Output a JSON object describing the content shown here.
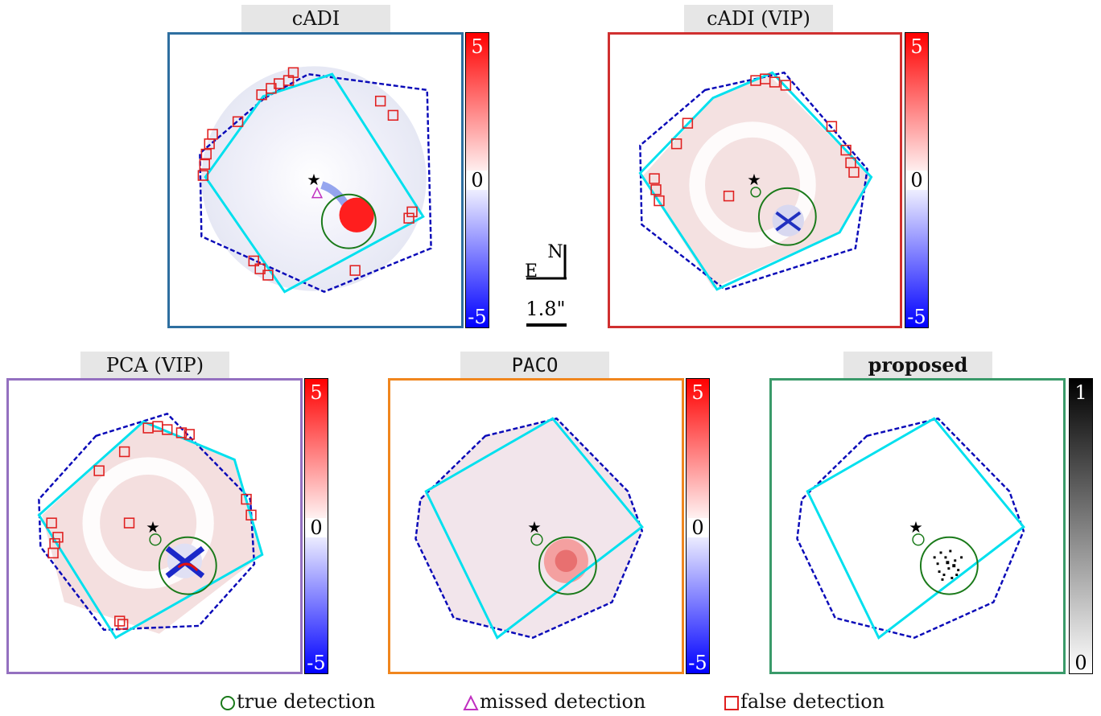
{
  "panels": [
    {
      "id": "cadi",
      "title": "cADI",
      "border": "#2e6fa0",
      "cbar": {
        "type": "rwb",
        "top": "5",
        "mid": "0",
        "bottom": "-5"
      }
    },
    {
      "id": "cadi_vip",
      "title": "cADI (VIP)",
      "border": "#d03030",
      "cbar": {
        "type": "rwb",
        "top": "5",
        "mid": "0",
        "bottom": "-5"
      }
    },
    {
      "id": "pca_vip",
      "title": "PCA (VIP)",
      "border": "#9470c0",
      "cbar": {
        "type": "rwb",
        "top": "5",
        "mid": "0",
        "bottom": "-5"
      }
    },
    {
      "id": "paco",
      "title": "PACO",
      "border": "#f0861e",
      "cbar": {
        "type": "rwb",
        "top": "5",
        "mid": "0",
        "bottom": "-5"
      }
    },
    {
      "id": "proposed",
      "title": "proposed",
      "border": "#3a9a6a",
      "cbar": {
        "type": "gray",
        "top": "1",
        "bottom": "0"
      }
    }
  ],
  "compass": {
    "north": "N",
    "east": "E"
  },
  "scale_bar": {
    "label": "1.8\""
  },
  "legend": {
    "true": "true detection",
    "missed": "missed detection",
    "false": "false detection"
  },
  "colors": {
    "true": "#1a7a1a",
    "missed": "#c030c0",
    "false": "#e02020",
    "fov": "#00e0ee",
    "mask": "#1010c0"
  }
}
